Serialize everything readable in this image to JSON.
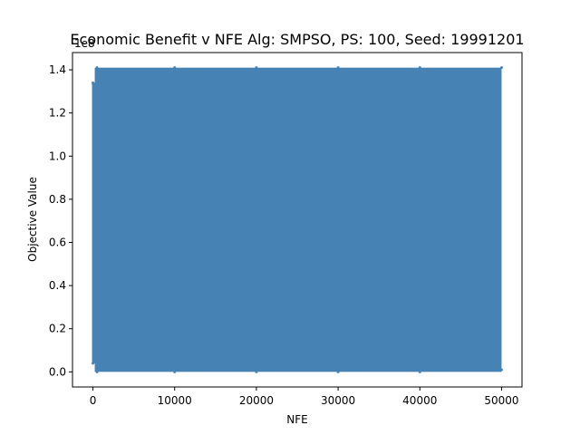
{
  "chart_data": {
    "type": "scatter",
    "title": "Economic Benefit v NFE Alg: SMPSO, PS: 100, Seed: 19991201",
    "xlabel": "NFE",
    "ylabel": "Objective Value",
    "y_offset_label": "1e8",
    "xlim": [
      -2500,
      52500
    ],
    "ylim": [
      -0.07,
      1.48
    ],
    "xticks": [
      0,
      10000,
      20000,
      30000,
      40000,
      50000
    ],
    "xtick_labels": [
      "0",
      "10000",
      "20000",
      "30000",
      "40000",
      "50000"
    ],
    "yticks": [
      0.0,
      0.2,
      0.4,
      0.6,
      0.8,
      1.0,
      1.2,
      1.4
    ],
    "ytick_labels": [
      "0.0",
      "0.2",
      "0.4",
      "0.6",
      "0.8",
      "1.0",
      "1.2",
      "1.4"
    ],
    "grid": false,
    "legend": false,
    "series": [
      {
        "color": "#4682b4",
        "x_range": [
          0,
          50000
        ],
        "y_range": [
          0.0,
          1.41
        ],
        "points": [
          {
            "x": 0,
            "y": 1.34
          },
          {
            "x": 0,
            "y": 0.04
          },
          {
            "x": 500,
            "y": 1.41
          },
          {
            "x": 500,
            "y": 0.0
          },
          {
            "x": 10000,
            "y": 1.41
          },
          {
            "x": 10000,
            "y": 0.0
          },
          {
            "x": 20000,
            "y": 1.41
          },
          {
            "x": 20000,
            "y": 0.0
          },
          {
            "x": 30000,
            "y": 1.41
          },
          {
            "x": 30000,
            "y": 0.0
          },
          {
            "x": 40000,
            "y": 1.41
          },
          {
            "x": 40000,
            "y": 0.0
          },
          {
            "x": 50000,
            "y": 1.41
          },
          {
            "x": 50000,
            "y": 0.01
          }
        ]
      }
    ]
  }
}
